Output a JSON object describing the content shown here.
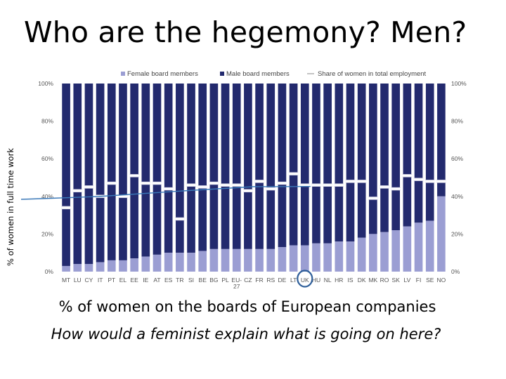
{
  "title": "Who are the hegemony? Men?",
  "side_label": "% of women in full time work",
  "caption": "% of women on the boards of European companies",
  "question": "How would a feminist explain what is going on here?",
  "colors": {
    "female": "#9b9ed3",
    "male": "#232a6e",
    "employment_marker": "#ffffff",
    "annotation": "#3a78b8"
  },
  "chart_data": {
    "type": "bar",
    "stacked": true,
    "categories": [
      "MT",
      "LU",
      "CY",
      "IT",
      "PT",
      "EL",
      "EE",
      "IE",
      "AT",
      "ES",
      "TR",
      "SI",
      "BE",
      "BG",
      "PL",
      "EU-27",
      "CZ",
      "FR",
      "RS",
      "DE",
      "LT",
      "UK",
      "HU",
      "NL",
      "HR",
      "IS",
      "DK",
      "MK",
      "RO",
      "SK",
      "LV",
      "FI",
      "SE",
      "NO"
    ],
    "tick_labels": [
      "MT",
      "LU",
      "CY",
      "IT",
      "PT",
      "EL",
      "EE",
      "IE",
      "AT",
      "ES",
      "TR",
      "SI",
      "BE",
      "BG",
      "PL",
      "EU-\n27",
      "CZ",
      "FR",
      "RS",
      "DE",
      "LT",
      "UK",
      "HU",
      "NL",
      "HR",
      "IS",
      "DK",
      "MK",
      "RO",
      "SK",
      "LV",
      "FI",
      "SE",
      "NO"
    ],
    "series": [
      {
        "name": "Female board members",
        "values": [
          3,
          4,
          4,
          5,
          6,
          6,
          7,
          8,
          9,
          10,
          10,
          10,
          11,
          12,
          12,
          12,
          12,
          12,
          12,
          13,
          14,
          14,
          15,
          15,
          16,
          16,
          18,
          20,
          21,
          22,
          24,
          26,
          27,
          40
        ]
      },
      {
        "name": "Male board members",
        "values": [
          97,
          96,
          96,
          95,
          94,
          94,
          93,
          92,
          91,
          90,
          90,
          90,
          89,
          88,
          88,
          88,
          88,
          88,
          88,
          87,
          86,
          86,
          85,
          85,
          84,
          84,
          82,
          80,
          79,
          78,
          76,
          74,
          73,
          60
        ]
      }
    ],
    "line_series": {
      "name": "Share of women in total employment",
      "values": [
        34,
        43,
        45,
        40,
        47,
        40,
        51,
        47,
        47,
        44,
        28,
        46,
        45,
        47,
        46,
        46,
        43,
        48,
        44,
        47,
        52,
        46,
        46,
        46,
        46,
        48,
        48,
        39,
        45,
        44,
        51,
        49,
        48,
        48
      ]
    },
    "ylim": [
      0,
      100
    ],
    "yticks": [
      "0%",
      "20%",
      "40%",
      "60%",
      "80%",
      "100%"
    ],
    "legend_position": "top",
    "grid": false
  }
}
